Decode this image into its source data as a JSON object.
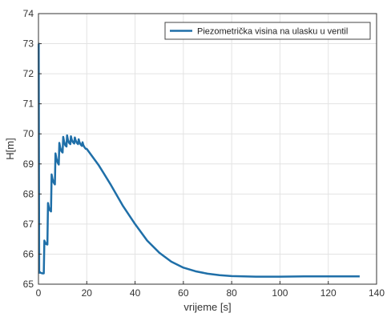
{
  "chart_data": {
    "type": "line",
    "title": "",
    "xlabel": "vrijeme [s]",
    "ylabel": "H[m]",
    "xlim": [
      0,
      140
    ],
    "ylim": [
      65,
      74
    ],
    "xticks": [
      0,
      20,
      40,
      60,
      80,
      100,
      120,
      140
    ],
    "yticks": [
      65,
      66,
      67,
      68,
      69,
      70,
      71,
      72,
      73,
      74
    ],
    "grid": true,
    "legend_position": "top-right",
    "series": [
      {
        "name": "Piezometrička visina na ulasku u ventil",
        "color": "#1f6fa8",
        "x": [
          0,
          0.1,
          0.3,
          0.35,
          0.4,
          0.6,
          0.9,
          1.2,
          1.6,
          2.2,
          2.45,
          2.7,
          3.2,
          3.7,
          3.95,
          4.3,
          4.8,
          5.2,
          5.45,
          5.8,
          6.3,
          6.8,
          7.05,
          7.4,
          7.9,
          8.4,
          8.65,
          9.0,
          9.5,
          10.0,
          10.25,
          10.6,
          11.1,
          11.6,
          11.85,
          12.2,
          12.7,
          13.2,
          13.45,
          13.8,
          14.3,
          14.8,
          15.05,
          15.4,
          15.9,
          16.4,
          16.65,
          17.0,
          17.5,
          18.0,
          18.25,
          18.6,
          19.1,
          19.6,
          20,
          22,
          25,
          30,
          35,
          40,
          45,
          50,
          55,
          60,
          65,
          70,
          75,
          80,
          85,
          90,
          95,
          100,
          110,
          120,
          133
        ],
        "values": [
          73.0,
          73.0,
          65.45,
          65.38,
          65.4,
          65.4,
          65.38,
          65.37,
          65.36,
          65.36,
          66.45,
          66.4,
          66.33,
          66.32,
          67.7,
          67.55,
          67.45,
          67.42,
          68.65,
          68.5,
          68.38,
          68.32,
          69.35,
          69.2,
          69.05,
          68.98,
          69.7,
          69.55,
          69.42,
          69.38,
          69.9,
          69.75,
          69.62,
          69.58,
          69.95,
          69.8,
          69.7,
          69.66,
          69.92,
          69.8,
          69.72,
          69.68,
          69.88,
          69.78,
          69.7,
          69.66,
          69.82,
          69.72,
          69.64,
          69.6,
          69.72,
          69.62,
          69.55,
          69.5,
          69.5,
          69.28,
          68.95,
          68.3,
          67.6,
          67.0,
          66.45,
          66.05,
          65.75,
          65.55,
          65.43,
          65.35,
          65.3,
          65.27,
          65.26,
          65.25,
          65.25,
          65.25,
          65.26,
          65.26,
          65.26
        ]
      }
    ]
  }
}
